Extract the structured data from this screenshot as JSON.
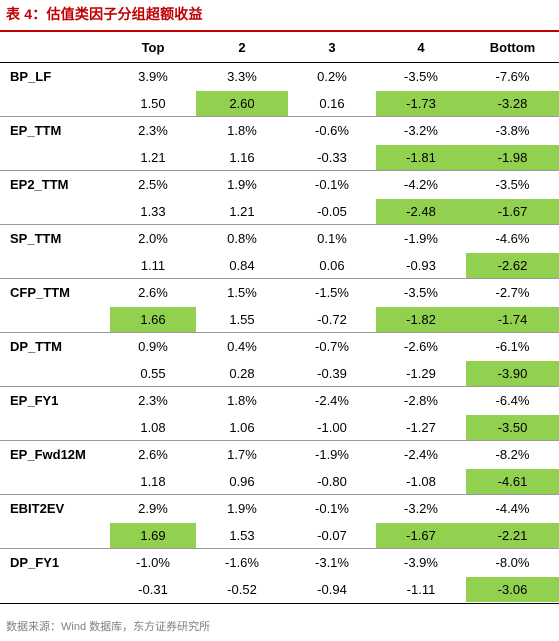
{
  "title": "表 4：估值类因子分组超额收益",
  "columns": [
    "Top",
    "2",
    "3",
    "4",
    "Bottom"
  ],
  "highlight_color": "#92d050",
  "accent_color": "#c00000",
  "rows": [
    {
      "factor": "BP_LF",
      "returns": [
        "3.9%",
        "3.3%",
        "0.2%",
        "-3.5%",
        "-7.6%"
      ],
      "tstats": [
        "1.50",
        "2.60",
        "0.16",
        "-1.73",
        "-3.28"
      ],
      "highlight": [
        false,
        true,
        false,
        true,
        true
      ]
    },
    {
      "factor": "EP_TTM",
      "returns": [
        "2.3%",
        "1.8%",
        "-0.6%",
        "-3.2%",
        "-3.8%"
      ],
      "tstats": [
        "1.21",
        "1.16",
        "-0.33",
        "-1.81",
        "-1.98"
      ],
      "highlight": [
        false,
        false,
        false,
        true,
        true
      ]
    },
    {
      "factor": "EP2_TTM",
      "returns": [
        "2.5%",
        "1.9%",
        "-0.1%",
        "-4.2%",
        "-3.5%"
      ],
      "tstats": [
        "1.33",
        "1.21",
        "-0.05",
        "-2.48",
        "-1.67"
      ],
      "highlight": [
        false,
        false,
        false,
        true,
        true
      ]
    },
    {
      "factor": "SP_TTM",
      "returns": [
        "2.0%",
        "0.8%",
        "0.1%",
        "-1.9%",
        "-4.6%"
      ],
      "tstats": [
        "1.11",
        "0.84",
        "0.06",
        "-0.93",
        "-2.62"
      ],
      "highlight": [
        false,
        false,
        false,
        false,
        true
      ]
    },
    {
      "factor": "CFP_TTM",
      "returns": [
        "2.6%",
        "1.5%",
        "-1.5%",
        "-3.5%",
        "-2.7%"
      ],
      "tstats": [
        "1.66",
        "1.55",
        "-0.72",
        "-1.82",
        "-1.74"
      ],
      "highlight": [
        true,
        false,
        false,
        true,
        true
      ]
    },
    {
      "factor": "DP_TTM",
      "returns": [
        "0.9%",
        "0.4%",
        "-0.7%",
        "-2.6%",
        "-6.1%"
      ],
      "tstats": [
        "0.55",
        "0.28",
        "-0.39",
        "-1.29",
        "-3.90"
      ],
      "highlight": [
        false,
        false,
        false,
        false,
        true
      ]
    },
    {
      "factor": "EP_FY1",
      "returns": [
        "2.3%",
        "1.8%",
        "-2.4%",
        "-2.8%",
        "-6.4%"
      ],
      "tstats": [
        "1.08",
        "1.06",
        "-1.00",
        "-1.27",
        "-3.50"
      ],
      "highlight": [
        false,
        false,
        false,
        false,
        true
      ]
    },
    {
      "factor": "EP_Fwd12M",
      "returns": [
        "2.6%",
        "1.7%",
        "-1.9%",
        "-2.4%",
        "-8.2%"
      ],
      "tstats": [
        "1.18",
        "0.96",
        "-0.80",
        "-1.08",
        "-4.61"
      ],
      "highlight": [
        false,
        false,
        false,
        false,
        true
      ]
    },
    {
      "factor": "EBIT2EV",
      "returns": [
        "2.9%",
        "1.9%",
        "-0.1%",
        "-3.2%",
        "-4.4%"
      ],
      "tstats": [
        "1.69",
        "1.53",
        "-0.07",
        "-1.67",
        "-2.21"
      ],
      "highlight": [
        true,
        false,
        false,
        true,
        true
      ]
    },
    {
      "factor": "DP_FY1",
      "returns": [
        "-1.0%",
        "-1.6%",
        "-3.1%",
        "-3.9%",
        "-8.0%"
      ],
      "tstats": [
        "-0.31",
        "-0.52",
        "-0.94",
        "-1.11",
        "-3.06"
      ],
      "highlight": [
        false,
        false,
        false,
        false,
        true
      ]
    }
  ],
  "source": "数据来源：Wind 数据库，东方证券研究所"
}
